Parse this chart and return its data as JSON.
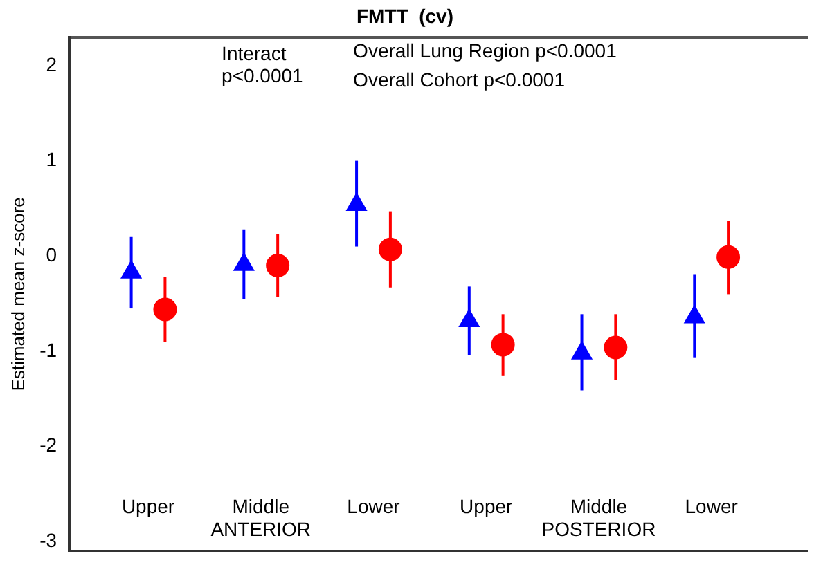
{
  "chart_data": {
    "type": "scatter",
    "title": "FMTT  (cv)",
    "ylabel": "Estimated mean z-score",
    "categories": [
      "Upper",
      "Middle",
      "Lower",
      "Upper",
      "Middle",
      "Lower"
    ],
    "series": [
      {
        "color": "#0000ff",
        "marker": "triangle",
        "values": [
          -0.17,
          -0.09,
          0.54,
          -0.68,
          -1.02,
          -0.64
        ],
        "errors": [
          [
            -0.55,
            0.2
          ],
          [
            -0.45,
            0.28
          ],
          [
            0.1,
            1.0
          ],
          [
            -1.04,
            -0.32
          ],
          [
            -1.41,
            -0.61
          ],
          [
            -1.07,
            -0.19
          ]
        ]
      },
      {
        "color": "#ff0000",
        "marker": "circle",
        "values": [
          -0.56,
          -0.1,
          0.07,
          -0.93,
          -0.96,
          -0.01
        ],
        "errors": [
          [
            -0.9,
            -0.22
          ],
          [
            -0.43,
            0.23
          ],
          [
            -0.33,
            0.47
          ],
          [
            -1.26,
            -0.61
          ],
          [
            -1.3,
            -0.61
          ],
          [
            -0.4,
            0.37
          ]
        ]
      }
    ],
    "ylim": [
      -3.1,
      2.3
    ],
    "yticks": [
      -3,
      -2,
      -1,
      0,
      1,
      2
    ],
    "grid": false,
    "legend": false,
    "annotations": [
      "Interact\np<0.0001",
      "Overall Lung Region p<0.0001",
      "Overall Cohort p<0.0001",
      "ANTERIOR",
      "POSTERIOR"
    ]
  }
}
